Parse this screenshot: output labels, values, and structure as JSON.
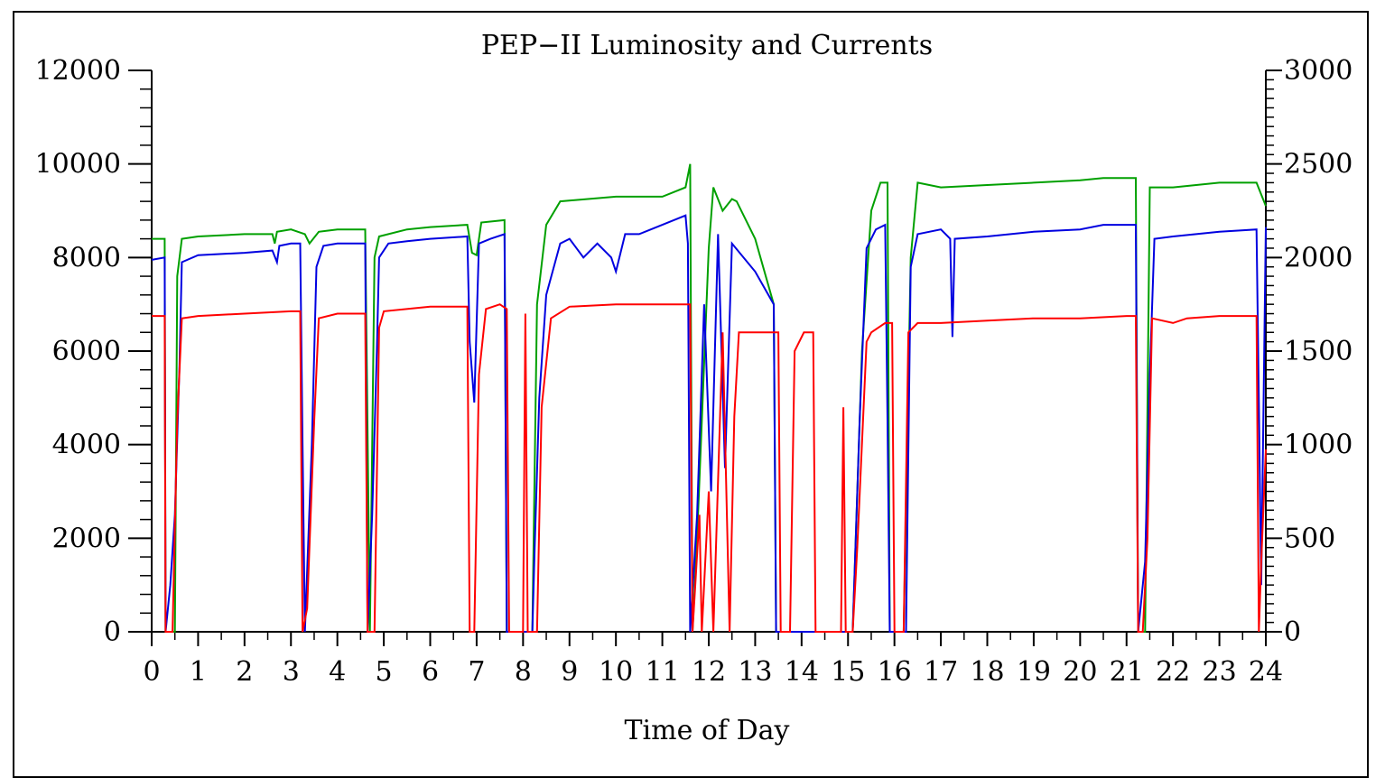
{
  "chart_data": {
    "type": "line",
    "title": "PEP−II Luminosity and Currents",
    "xlabel": "Time of Day",
    "ylabel": "",
    "y2label": "",
    "xlim": [
      0,
      24
    ],
    "ylim": [
      0,
      12000
    ],
    "y2lim": [
      0,
      3000
    ],
    "x_ticks": [
      "0",
      "1",
      "2",
      "3",
      "4",
      "5",
      "6",
      "7",
      "8",
      "9",
      "10",
      "11",
      "12",
      "13",
      "14",
      "15",
      "16",
      "17",
      "18",
      "19",
      "20",
      "21",
      "22",
      "23",
      "24"
    ],
    "y_ticks": [
      "0",
      "2000",
      "4000",
      "6000",
      "8000",
      "10000",
      "12000"
    ],
    "y2_ticks": [
      "0",
      "500",
      "1000",
      "1500",
      "2000",
      "2500",
      "3000"
    ],
    "grid": false,
    "legend": "none",
    "series": [
      {
        "color": "#00a000",
        "axis": "left",
        "points": [
          [
            0,
            8400
          ],
          [
            0.28,
            8400
          ],
          [
            0.3,
            0
          ],
          [
            0.5,
            0
          ],
          [
            0.55,
            7600
          ],
          [
            0.65,
            8400
          ],
          [
            1,
            8450
          ],
          [
            2,
            8500
          ],
          [
            2.6,
            8500
          ],
          [
            2.65,
            8300
          ],
          [
            2.7,
            8550
          ],
          [
            3,
            8600
          ],
          [
            3.3,
            8500
          ],
          [
            3.4,
            8300
          ],
          [
            3.6,
            8550
          ],
          [
            4,
            8600
          ],
          [
            4.6,
            8600
          ],
          [
            4.7,
            0
          ],
          [
            4.8,
            8000
          ],
          [
            4.9,
            8450
          ],
          [
            5.5,
            8600
          ],
          [
            6,
            8650
          ],
          [
            6.8,
            8700
          ],
          [
            6.9,
            8100
          ],
          [
            7,
            8050
          ],
          [
            7.1,
            8750
          ],
          [
            7.6,
            8800
          ],
          [
            7.65,
            0
          ],
          [
            8.2,
            0
          ],
          [
            8.3,
            7000
          ],
          [
            8.5,
            8700
          ],
          [
            8.8,
            9200
          ],
          [
            10,
            9300
          ],
          [
            11,
            9300
          ],
          [
            11.5,
            9500
          ],
          [
            11.6,
            10000
          ],
          [
            11.65,
            0
          ],
          [
            11.75,
            2000
          ],
          [
            12,
            8200
          ],
          [
            12.1,
            9500
          ],
          [
            12.3,
            9000
          ],
          [
            12.5,
            9250
          ],
          [
            12.6,
            9200
          ],
          [
            13,
            8400
          ],
          [
            13.4,
            7000
          ],
          [
            13.45,
            0
          ],
          [
            15.1,
            0
          ],
          [
            15.3,
            6000
          ],
          [
            15.5,
            9000
          ],
          [
            15.7,
            9600
          ],
          [
            15.85,
            9600
          ],
          [
            15.9,
            0
          ],
          [
            16.2,
            0
          ],
          [
            16.35,
            8000
          ],
          [
            16.5,
            9600
          ],
          [
            17,
            9500
          ],
          [
            18,
            9550
          ],
          [
            19,
            9600
          ],
          [
            20,
            9650
          ],
          [
            20.5,
            9700
          ],
          [
            21.2,
            9700
          ],
          [
            21.25,
            0
          ],
          [
            21.4,
            0
          ],
          [
            21.5,
            9500
          ],
          [
            22,
            9500
          ],
          [
            23,
            9600
          ],
          [
            23.8,
            9600
          ],
          [
            24,
            9100
          ]
        ]
      },
      {
        "color": "#0000e0",
        "axis": "left",
        "points": [
          [
            0,
            7950
          ],
          [
            0.28,
            8000
          ],
          [
            0.3,
            0
          ],
          [
            0.4,
            1000
          ],
          [
            0.5,
            2500
          ],
          [
            0.6,
            5700
          ],
          [
            0.65,
            7900
          ],
          [
            1,
            8050
          ],
          [
            2,
            8100
          ],
          [
            2.6,
            8150
          ],
          [
            2.7,
            7900
          ],
          [
            2.75,
            8250
          ],
          [
            3,
            8300
          ],
          [
            3.2,
            8300
          ],
          [
            3.25,
            4000
          ],
          [
            3.3,
            0
          ],
          [
            3.45,
            4000
          ],
          [
            3.55,
            7800
          ],
          [
            3.7,
            8250
          ],
          [
            4,
            8300
          ],
          [
            4.6,
            8300
          ],
          [
            4.65,
            0
          ],
          [
            4.75,
            2500
          ],
          [
            4.85,
            6000
          ],
          [
            4.9,
            8000
          ],
          [
            5.1,
            8300
          ],
          [
            5.5,
            8350
          ],
          [
            6,
            8400
          ],
          [
            6.8,
            8450
          ],
          [
            6.85,
            6200
          ],
          [
            6.95,
            4900
          ],
          [
            7.05,
            8300
          ],
          [
            7.3,
            8400
          ],
          [
            7.6,
            8500
          ],
          [
            7.65,
            0
          ],
          [
            8.2,
            0
          ],
          [
            8.25,
            1800
          ],
          [
            8.35,
            5000
          ],
          [
            8.5,
            7200
          ],
          [
            8.8,
            8300
          ],
          [
            9,
            8400
          ],
          [
            9.3,
            8000
          ],
          [
            9.6,
            8300
          ],
          [
            9.9,
            8000
          ],
          [
            10,
            7700
          ],
          [
            10.2,
            8500
          ],
          [
            10.5,
            8500
          ],
          [
            11,
            8700
          ],
          [
            11.5,
            8900
          ],
          [
            11.55,
            8300
          ],
          [
            11.6,
            0
          ],
          [
            11.75,
            2500
          ],
          [
            11.9,
            7000
          ],
          [
            12.05,
            3000
          ],
          [
            12.2,
            8500
          ],
          [
            12.35,
            3500
          ],
          [
            12.5,
            8300
          ],
          [
            13,
            7700
          ],
          [
            13.4,
            7000
          ],
          [
            13.45,
            0
          ],
          [
            15.1,
            0
          ],
          [
            15.25,
            4500
          ],
          [
            15.4,
            8200
          ],
          [
            15.6,
            8600
          ],
          [
            15.8,
            8700
          ],
          [
            15.85,
            4500
          ],
          [
            15.9,
            0
          ],
          [
            16.25,
            0
          ],
          [
            16.35,
            7800
          ],
          [
            16.5,
            8500
          ],
          [
            17,
            8600
          ],
          [
            17.2,
            8400
          ],
          [
            17.25,
            6300
          ],
          [
            17.3,
            8400
          ],
          [
            18,
            8450
          ],
          [
            19,
            8550
          ],
          [
            20,
            8600
          ],
          [
            20.5,
            8700
          ],
          [
            21.2,
            8700
          ],
          [
            21.25,
            0
          ],
          [
            21.4,
            1500
          ],
          [
            21.5,
            5500
          ],
          [
            21.6,
            8400
          ],
          [
            22,
            8450
          ],
          [
            23,
            8550
          ],
          [
            23.8,
            8600
          ],
          [
            23.85,
            4900
          ],
          [
            23.9,
            1000
          ],
          [
            24,
            8650
          ]
        ]
      },
      {
        "color": "#ff0000",
        "axis": "left",
        "points": [
          [
            0,
            6750
          ],
          [
            0.28,
            6750
          ],
          [
            0.3,
            0
          ],
          [
            0.45,
            0
          ],
          [
            0.55,
            4500
          ],
          [
            0.65,
            6700
          ],
          [
            1,
            6750
          ],
          [
            2,
            6800
          ],
          [
            3,
            6850
          ],
          [
            3.2,
            6850
          ],
          [
            3.25,
            0
          ],
          [
            3.35,
            500
          ],
          [
            3.5,
            4500
          ],
          [
            3.6,
            6700
          ],
          [
            4,
            6800
          ],
          [
            4.6,
            6800
          ],
          [
            4.65,
            0
          ],
          [
            4.8,
            0
          ],
          [
            4.9,
            6500
          ],
          [
            5,
            6850
          ],
          [
            6,
            6950
          ],
          [
            6.8,
            6950
          ],
          [
            6.85,
            0
          ],
          [
            6.95,
            0
          ],
          [
            7.05,
            5500
          ],
          [
            7.2,
            6900
          ],
          [
            7.5,
            7000
          ],
          [
            7.65,
            6900
          ],
          [
            7.7,
            0
          ],
          [
            8,
            0
          ],
          [
            8.05,
            6800
          ],
          [
            8.1,
            0
          ],
          [
            8.3,
            0
          ],
          [
            8.4,
            4800
          ],
          [
            8.6,
            6700
          ],
          [
            9,
            6950
          ],
          [
            10,
            7000
          ],
          [
            11,
            7000
          ],
          [
            11.6,
            7000
          ],
          [
            11.65,
            0
          ],
          [
            11.8,
            2500
          ],
          [
            11.85,
            0
          ],
          [
            12,
            3000
          ],
          [
            12.1,
            0
          ],
          [
            12.3,
            6400
          ],
          [
            12.45,
            0
          ],
          [
            12.55,
            4600
          ],
          [
            12.65,
            6400
          ],
          [
            13,
            6400
          ],
          [
            13.5,
            6400
          ],
          [
            13.55,
            0
          ],
          [
            13.75,
            0
          ],
          [
            13.85,
            6000
          ],
          [
            14.05,
            6400
          ],
          [
            14.25,
            6400
          ],
          [
            14.3,
            0
          ],
          [
            14.85,
            0
          ],
          [
            14.9,
            4800
          ],
          [
            14.95,
            0
          ],
          [
            15.1,
            0
          ],
          [
            15.2,
            1800
          ],
          [
            15.4,
            6200
          ],
          [
            15.5,
            6400
          ],
          [
            15.8,
            6600
          ],
          [
            15.95,
            6600
          ],
          [
            16,
            0
          ],
          [
            16.2,
            0
          ],
          [
            16.3,
            6400
          ],
          [
            16.5,
            6600
          ],
          [
            17,
            6600
          ],
          [
            18,
            6650
          ],
          [
            19,
            6700
          ],
          [
            20,
            6700
          ],
          [
            21,
            6750
          ],
          [
            21.2,
            6750
          ],
          [
            21.25,
            0
          ],
          [
            21.35,
            0
          ],
          [
            21.45,
            2000
          ],
          [
            21.55,
            6700
          ],
          [
            22,
            6600
          ],
          [
            22.3,
            6700
          ],
          [
            23,
            6750
          ],
          [
            23.8,
            6750
          ],
          [
            23.85,
            0
          ],
          [
            23.9,
            1500
          ],
          [
            24,
            3900
          ]
        ]
      }
    ]
  }
}
